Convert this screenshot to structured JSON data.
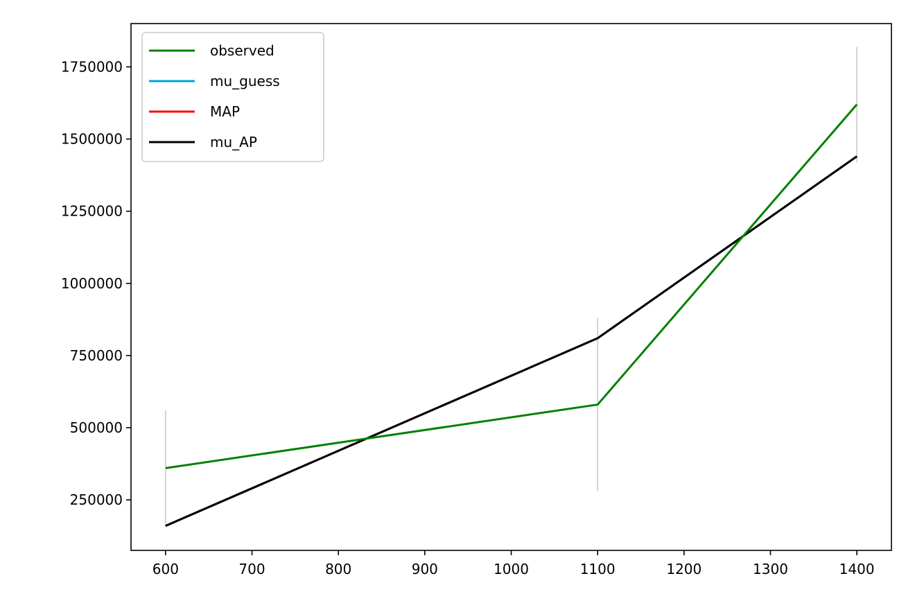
{
  "chart_data": {
    "type": "line",
    "title": "",
    "xlabel": "",
    "ylabel": "",
    "xlim": [
      560,
      1440
    ],
    "ylim": [
      75000,
      1900000
    ],
    "xticks": [
      600,
      700,
      800,
      900,
      1000,
      1100,
      1200,
      1300,
      1400
    ],
    "yticks": [
      250000,
      500000,
      750000,
      1000000,
      1250000,
      1500000,
      1750000
    ],
    "x": [
      600,
      1100,
      1400
    ],
    "series": [
      {
        "name": "observed",
        "color": "#008000",
        "values": [
          360000,
          580000,
          1620000
        ]
      },
      {
        "name": "mu_guess",
        "color": "#00a0e0",
        "values": [
          160000,
          810000,
          1440000
        ]
      },
      {
        "name": "MAP",
        "color": "#ff0000",
        "values": [
          160000,
          810000,
          1440000
        ]
      },
      {
        "name": "mu_AP",
        "color": "#000000",
        "values": [
          160000,
          810000,
          1440000
        ]
      }
    ],
    "error_bars": {
      "color": "#d3d3d3",
      "x": [
        600,
        1100,
        1400
      ],
      "lower": [
        160000,
        280000,
        1420000
      ],
      "upper": [
        560000,
        880000,
        1820000
      ]
    },
    "legend_position": "top-left",
    "grid": false
  }
}
